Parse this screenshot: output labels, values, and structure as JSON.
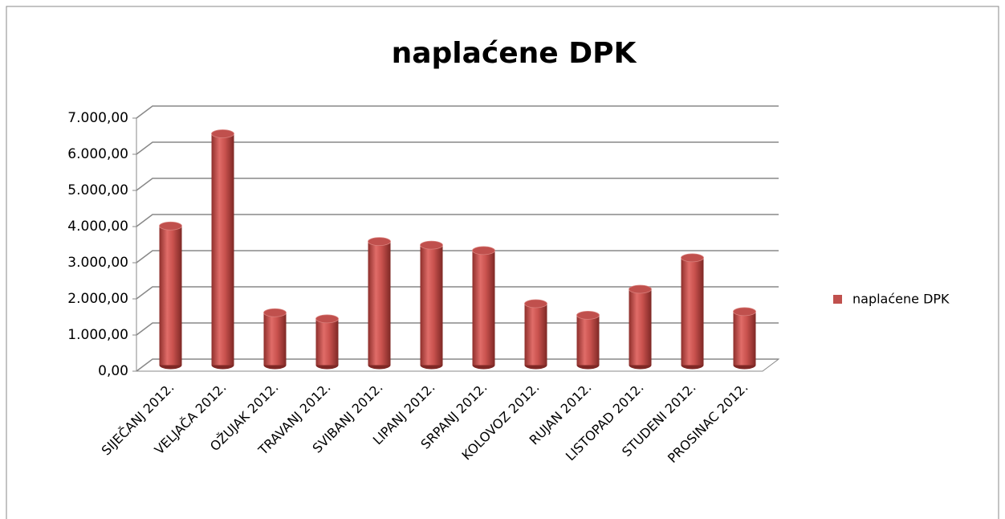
{
  "chart_data": {
    "type": "bar",
    "title": "naplaćene DPK",
    "categories": [
      "SIJEČANJ 2012.",
      "VELJAČA 2012.",
      "OŽUJAK 2012.",
      "TRAVANJ 2012.",
      "SVIBANJ 2012.",
      "LIPANJ 2012.",
      "SRPANJ 2012.",
      "KOLOVOZ  2012.",
      "RUJAN 2012.",
      "LISTOPAD 2012.",
      "STUDENI 2012.",
      "PROSINAC 2012."
    ],
    "series": [
      {
        "name": "naplaćene DPK",
        "color": "#c0504d",
        "values": [
          3850,
          6400,
          1450,
          1280,
          3420,
          3320,
          3170,
          1700,
          1380,
          2100,
          2970,
          1480
        ]
      }
    ],
    "ylim": [
      0,
      7000
    ],
    "yticks": [
      {
        "value": 0,
        "label": "0,00"
      },
      {
        "value": 1000,
        "label": "1.000,00"
      },
      {
        "value": 2000,
        "label": "2.000,00"
      },
      {
        "value": 3000,
        "label": "3.000,00"
      },
      {
        "value": 4000,
        "label": "4.000,00"
      },
      {
        "value": 5000,
        "label": "5.000,00"
      },
      {
        "value": 6000,
        "label": "6.000,00"
      },
      {
        "value": 7000,
        "label": "7.000,00"
      }
    ],
    "grid": true,
    "legend": "right"
  }
}
